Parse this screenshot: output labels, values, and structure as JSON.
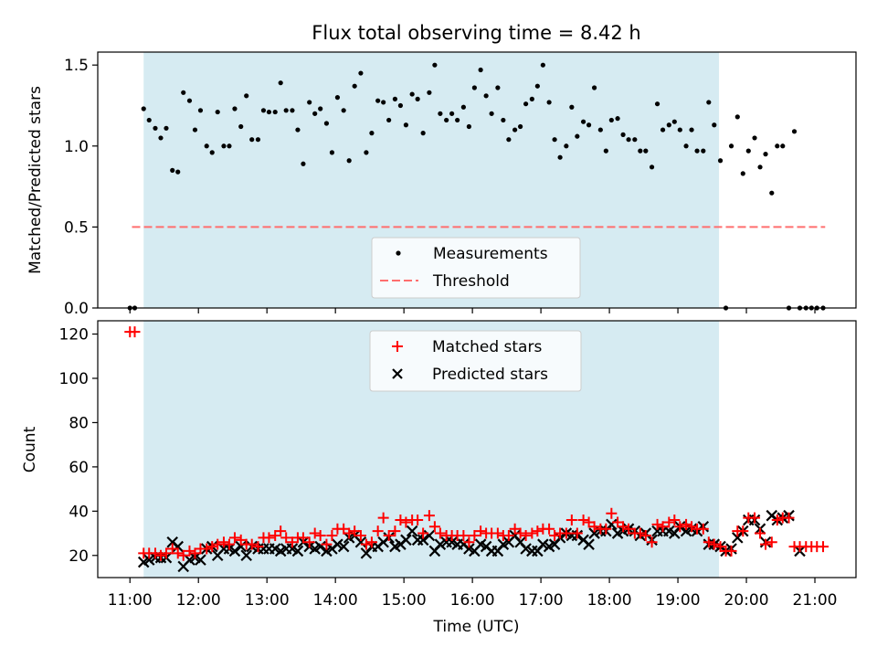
{
  "chart_data": [
    {
      "type": "scatter",
      "title": "Flux total observing time = 8.42 h",
      "ylabel": "Matched/Predicted stars",
      "xlabel": "",
      "xlim": [
        10.53,
        21.6
      ],
      "ylim": [
        0,
        1.58
      ],
      "yticks": [
        0.0,
        0.5,
        1.0,
        1.5
      ],
      "ytick_labels": [
        "0.0",
        "0.5",
        "1.0",
        "1.5"
      ],
      "shaded_interval": [
        11.2,
        19.6
      ],
      "shaded_color": "#add8e6",
      "legend_position": "lower center",
      "series": [
        {
          "name": "Measurements",
          "marker": "dot",
          "color": "#000000",
          "x": [
            11.0,
            11.07,
            11.2,
            11.28,
            11.37,
            11.45,
            11.53,
            11.62,
            11.7,
            11.78,
            11.87,
            11.95,
            12.03,
            12.12,
            12.2,
            12.28,
            12.37,
            12.45,
            12.53,
            12.62,
            12.7,
            12.78,
            12.87,
            12.95,
            13.03,
            13.12,
            13.2,
            13.28,
            13.37,
            13.45,
            13.53,
            13.62,
            13.7,
            13.78,
            13.87,
            13.95,
            14.03,
            14.12,
            14.2,
            14.28,
            14.37,
            14.45,
            14.53,
            14.62,
            14.7,
            14.78,
            14.87,
            14.95,
            15.03,
            15.12,
            15.2,
            15.28,
            15.37,
            15.45,
            15.53,
            15.62,
            15.7,
            15.78,
            15.87,
            15.95,
            16.03,
            16.12,
            16.2,
            16.28,
            16.37,
            16.45,
            16.53,
            16.62,
            16.7,
            16.78,
            16.87,
            16.95,
            17.03,
            17.12,
            17.2,
            17.28,
            17.37,
            17.45,
            17.53,
            17.62,
            17.7,
            17.78,
            17.87,
            17.95,
            18.03,
            18.12,
            18.2,
            18.28,
            18.37,
            18.45,
            18.53,
            18.62,
            18.7,
            18.78,
            18.87,
            18.95,
            19.03,
            19.12,
            19.2,
            19.28,
            19.37,
            19.45,
            19.53,
            19.62,
            19.7,
            19.78,
            19.87,
            19.95,
            20.03,
            20.12,
            20.2,
            20.28,
            20.37,
            20.45,
            20.53,
            20.62,
            20.7,
            20.78,
            20.87,
            20.95,
            21.03,
            21.12
          ],
          "y": [
            0.0,
            0.0,
            1.23,
            1.16,
            1.11,
            1.05,
            1.11,
            0.85,
            0.84,
            1.33,
            1.28,
            1.1,
            1.22,
            1.0,
            0.96,
            1.21,
            1.0,
            1.0,
            1.23,
            1.12,
            1.31,
            1.04,
            1.04,
            1.22,
            1.21,
            1.21,
            1.39,
            1.22,
            1.22,
            1.1,
            0.89,
            1.27,
            1.2,
            1.23,
            1.14,
            0.96,
            1.3,
            1.22,
            0.91,
            1.37,
            1.45,
            0.96,
            1.08,
            1.28,
            1.27,
            1.16,
            1.29,
            1.25,
            1.13,
            1.32,
            1.29,
            1.08,
            1.33,
            1.5,
            1.2,
            1.16,
            1.2,
            1.16,
            1.24,
            1.12,
            1.36,
            1.47,
            1.31,
            1.2,
            1.36,
            1.16,
            1.04,
            1.1,
            1.12,
            1.26,
            1.29,
            1.37,
            1.5,
            1.27,
            1.04,
            0.93,
            1.0,
            1.24,
            1.06,
            1.15,
            1.13,
            1.36,
            1.1,
            0.97,
            1.16,
            1.17,
            1.07,
            1.04,
            1.04,
            0.97,
            0.97,
            0.87,
            1.26,
            1.1,
            1.13,
            1.15,
            1.1,
            1.0,
            1.1,
            0.97,
            0.97,
            1.27,
            1.13,
            0.91,
            0.0,
            1.0,
            1.18,
            0.83,
            0.97,
            1.05,
            0.87,
            0.95,
            0.71,
            1.0,
            1.0,
            0.0,
            1.09,
            0.0,
            0.0,
            0.0,
            0.0,
            0.0
          ]
        },
        {
          "name": "Threshold",
          "marker": "dashed-line",
          "color": "#ff6e6e",
          "x": [
            11.03,
            21.15
          ],
          "y": [
            0.5,
            0.5
          ]
        }
      ]
    },
    {
      "type": "scatter",
      "title": "",
      "ylabel": "Count",
      "xlabel": "Time (UTC)",
      "xlim": [
        10.53,
        21.6
      ],
      "ylim": [
        10,
        126
      ],
      "yticks": [
        20,
        40,
        60,
        80,
        100,
        120
      ],
      "ytick_labels": [
        "20",
        "40",
        "60",
        "80",
        "100",
        "120"
      ],
      "xticks": [
        11,
        12,
        13,
        14,
        15,
        16,
        17,
        18,
        19,
        20,
        21
      ],
      "xtick_labels": [
        "11:00",
        "12:00",
        "13:00",
        "14:00",
        "15:00",
        "16:00",
        "17:00",
        "18:00",
        "19:00",
        "20:00",
        "21:00"
      ],
      "shaded_interval": [
        11.2,
        19.6
      ],
      "shaded_color": "#add8e6",
      "legend_position": "upper center",
      "series": [
        {
          "name": "Matched stars",
          "marker": "plus",
          "color": "#ff0000",
          "x": [
            11.0,
            11.07,
            11.2,
            11.28,
            11.37,
            11.45,
            11.53,
            11.62,
            11.7,
            11.78,
            11.87,
            11.95,
            12.03,
            12.12,
            12.2,
            12.28,
            12.37,
            12.45,
            12.53,
            12.62,
            12.7,
            12.78,
            12.87,
            12.95,
            13.03,
            13.12,
            13.2,
            13.28,
            13.37,
            13.45,
            13.53,
            13.62,
            13.7,
            13.78,
            13.87,
            13.95,
            14.03,
            14.12,
            14.2,
            14.28,
            14.37,
            14.45,
            14.53,
            14.62,
            14.7,
            14.78,
            14.87,
            14.95,
            15.03,
            15.12,
            15.2,
            15.28,
            15.37,
            15.45,
            15.53,
            15.62,
            15.7,
            15.78,
            15.87,
            15.95,
            16.03,
            16.12,
            16.2,
            16.28,
            16.37,
            16.45,
            16.53,
            16.62,
            16.7,
            16.78,
            16.87,
            16.95,
            17.03,
            17.12,
            17.2,
            17.28,
            17.37,
            17.45,
            17.53,
            17.62,
            17.7,
            17.78,
            17.87,
            17.95,
            18.03,
            18.12,
            18.2,
            18.28,
            18.37,
            18.45,
            18.53,
            18.62,
            18.7,
            18.78,
            18.87,
            18.95,
            19.03,
            19.12,
            19.2,
            19.28,
            19.37,
            19.45,
            19.53,
            19.62,
            19.7,
            19.78,
            19.87,
            19.95,
            20.03,
            20.12,
            20.2,
            20.28,
            20.37,
            20.45,
            20.53,
            20.62,
            20.7,
            20.78,
            20.87,
            20.95,
            21.03,
            21.12
          ],
          "y": [
            121,
            121,
            21,
            21,
            21,
            20,
            21,
            23,
            21,
            20,
            22,
            21,
            23,
            23,
            24,
            25,
            26,
            25,
            28,
            27,
            25,
            25,
            24,
            28,
            28,
            29,
            31,
            28,
            26,
            28,
            28,
            26,
            30,
            29,
            25,
            29,
            32,
            32,
            30,
            31,
            29,
            25,
            26,
            31,
            37,
            29,
            31,
            36,
            35,
            36,
            36,
            30,
            38,
            33,
            30,
            29,
            29,
            29,
            29,
            26,
            29,
            31,
            30,
            30,
            30,
            29,
            29,
            32,
            30,
            29,
            30,
            31,
            32,
            32,
            29,
            30,
            30,
            36,
            30,
            36,
            35,
            33,
            32,
            32,
            39,
            35,
            33,
            32,
            30,
            30,
            29,
            26,
            34,
            33,
            35,
            36,
            33,
            34,
            33,
            32,
            32,
            26,
            25,
            24,
            22,
            22,
            31,
            31,
            37,
            37,
            30,
            25,
            26,
            36,
            37,
            37,
            24,
            24,
            24,
            24,
            24,
            24
          ]
        },
        {
          "name": "Predicted stars",
          "marker": "x",
          "color": "#000000",
          "x": [
            11.2,
            11.28,
            11.37,
            11.45,
            11.53,
            11.62,
            11.7,
            11.78,
            11.87,
            11.95,
            12.03,
            12.12,
            12.2,
            12.28,
            12.37,
            12.45,
            12.53,
            12.62,
            12.7,
            12.78,
            12.87,
            12.95,
            13.03,
            13.12,
            13.2,
            13.28,
            13.37,
            13.45,
            13.53,
            13.62,
            13.7,
            13.78,
            13.87,
            13.95,
            14.03,
            14.12,
            14.2,
            14.28,
            14.37,
            14.45,
            14.53,
            14.62,
            14.7,
            14.78,
            14.87,
            14.95,
            15.03,
            15.12,
            15.2,
            15.28,
            15.37,
            15.45,
            15.53,
            15.62,
            15.7,
            15.78,
            15.87,
            15.95,
            16.03,
            16.12,
            16.2,
            16.28,
            16.37,
            16.45,
            16.53,
            16.62,
            16.7,
            16.78,
            16.87,
            16.95,
            17.03,
            17.12,
            17.2,
            17.28,
            17.37,
            17.45,
            17.53,
            17.62,
            17.7,
            17.78,
            17.87,
            17.95,
            18.03,
            18.12,
            18.2,
            18.28,
            18.37,
            18.45,
            18.53,
            18.62,
            18.7,
            18.78,
            18.87,
            18.95,
            19.03,
            19.12,
            19.2,
            19.28,
            19.37,
            19.45,
            19.53,
            19.62,
            19.7,
            19.78,
            19.87,
            19.95,
            20.03,
            20.12,
            20.2,
            20.28,
            20.37,
            20.45,
            20.53,
            20.62,
            20.78
          ],
          "y": [
            17,
            18,
            19,
            19,
            19,
            26,
            24,
            15,
            18,
            19,
            18,
            23,
            24,
            20,
            23,
            23,
            22,
            24,
            20,
            24,
            23,
            23,
            23,
            23,
            22,
            23,
            23,
            22,
            26,
            24,
            23,
            24,
            22,
            23,
            25,
            24,
            28,
            29,
            26,
            21,
            24,
            24,
            26,
            28,
            24,
            25,
            27,
            31,
            27,
            27,
            29,
            22,
            25,
            26,
            26,
            25,
            25,
            23,
            22,
            25,
            24,
            22,
            22,
            25,
            26,
            29,
            26,
            23,
            22,
            22,
            25,
            24,
            25,
            28,
            30,
            29,
            29,
            27,
            25,
            30,
            31,
            31,
            34,
            30,
            31,
            32,
            31,
            29,
            30,
            27,
            31,
            31,
            31,
            30,
            33,
            31,
            32,
            31,
            33,
            25,
            25,
            24,
            22,
            23,
            28,
            31,
            36,
            36,
            32,
            26,
            38,
            36,
            37,
            38,
            22
          ]
        }
      ]
    }
  ]
}
